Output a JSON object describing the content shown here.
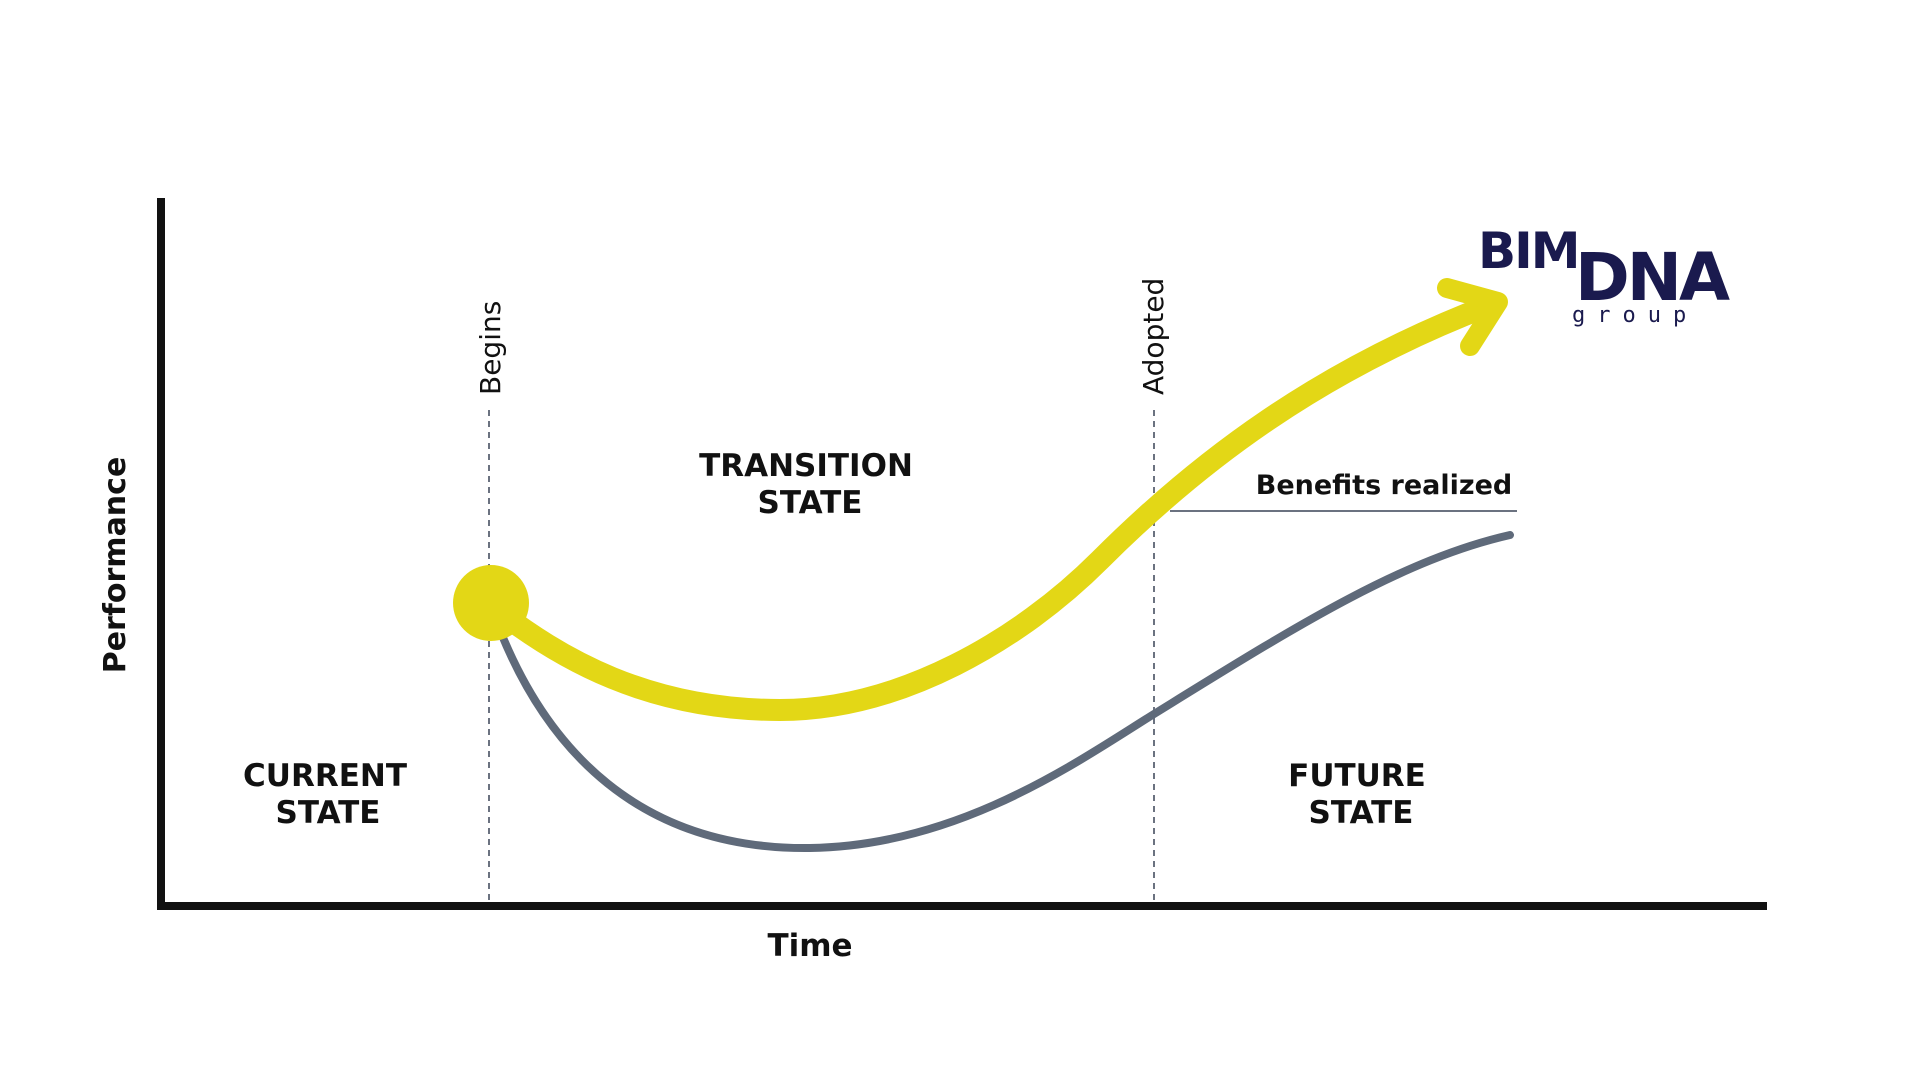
{
  "axes": {
    "y_label": "Performance",
    "x_label": "Time"
  },
  "phases": {
    "begins": "Begins",
    "adopted": "Adopted"
  },
  "states": {
    "current_line1": "CURRENT",
    "current_line2": "STATE",
    "transition_line1": "TRANSITION",
    "transition_line2": "STATE",
    "future_line1": "FUTURE",
    "future_line2": "STATE"
  },
  "annotation": {
    "benefits": "Benefits realized"
  },
  "logo": {
    "part1": "BIM",
    "part2": "DNA",
    "sub": "group"
  },
  "colors": {
    "axis": "#111111",
    "yellow_curve": "#e3d716",
    "grey_curve": "#5f6a7a",
    "dashed_line": "#6b7280",
    "logo_navy": "#1a1a4e"
  }
}
